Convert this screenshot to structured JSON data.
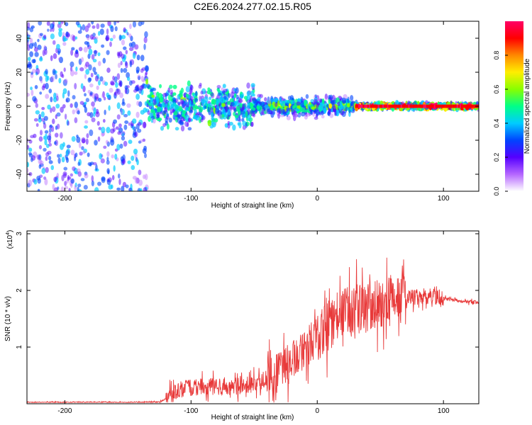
{
  "chart_data": [
    {
      "type": "heatmap",
      "title": "C2E6.2024.277.02.15.R05",
      "xlabel": "Height of straight line (km)",
      "ylabel": "Frequency (Hz)",
      "xlim": [
        -230,
        128
      ],
      "ylim": [
        -50,
        50
      ],
      "xticks": [
        -200,
        -100,
        0,
        100
      ],
      "yticks": [
        -40,
        -20,
        0,
        20,
        40
      ],
      "colorbar": {
        "label": "Normalized spectral amplitude",
        "range": [
          0,
          1
        ],
        "ticks": [
          "0.0",
          "0.2",
          "0.4",
          "0.6",
          "0.8"
        ],
        "colors": [
          "#ffffff",
          "#b566ff",
          "#5500ff",
          "#0044ff",
          "#00ccff",
          "#00ff88",
          "#88ff00",
          "#ffee00",
          "#ff8800",
          "#ff0000",
          "#ff0066"
        ]
      },
      "regions": [
        {
          "x_from": -230,
          "x_to": -135,
          "description_values": {
            "freq_spread_hz": 50,
            "mean_amplitude": 0.25
          }
        },
        {
          "x_from": -135,
          "x_to": -50,
          "description_values": {
            "freq_spread_hz": 10,
            "mean_amplitude": 0.35
          }
        },
        {
          "x_from": -50,
          "x_to": 30,
          "description_values": {
            "freq_spread_hz": 5,
            "mean_amplitude": 0.45
          }
        },
        {
          "x_from": 30,
          "x_to": 128,
          "description_values": {
            "freq_spread_hz": 1.5,
            "mean_amplitude": 0.8
          }
        }
      ]
    },
    {
      "type": "line",
      "xlabel": "Height of straight line (km)",
      "ylabel": "SNR (10 * v/v)",
      "y_multiplier": "(x10",
      "y_multiplier_exp": "4",
      "y_multiplier_close": ")",
      "xlim": [
        -230,
        128
      ],
      "ylim": [
        0,
        3.05
      ],
      "xticks": [
        -200,
        -100,
        0,
        100
      ],
      "yticks": [
        1,
        2,
        3
      ],
      "color": "#e83a3a",
      "x": [
        -230,
        -200,
        -150,
        -125,
        -115,
        -110,
        -100,
        -90,
        -80,
        -70,
        -60,
        -50,
        -40,
        -30,
        -20,
        -10,
        0,
        10,
        20,
        30,
        40,
        50,
        60,
        70,
        80,
        90,
        100,
        110,
        120,
        128
      ],
      "values": [
        0.02,
        0.02,
        0.02,
        0.03,
        0.15,
        0.25,
        0.28,
        0.3,
        0.3,
        0.3,
        0.32,
        0.35,
        0.45,
        0.55,
        0.8,
        0.95,
        1.2,
        1.4,
        1.6,
        1.65,
        1.7,
        1.75,
        1.8,
        1.85,
        1.88,
        1.9,
        1.86,
        1.82,
        1.8,
        1.79
      ]
    }
  ],
  "figure": {
    "title": "C2E6.2024.277.02.15.R05"
  }
}
